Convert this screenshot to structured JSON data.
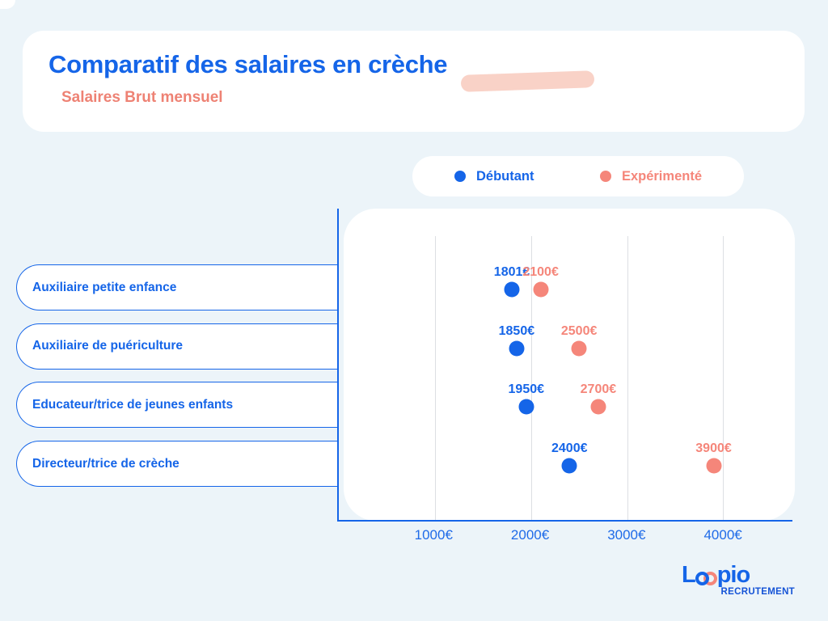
{
  "page": {
    "background": "#ecf4f9"
  },
  "header": {
    "title": "Comparatif des salaires en crèche",
    "subtitle": "Salaires Brut mensuel",
    "title_color": "#1565e8",
    "subtitle_color": "#ee8274",
    "highlight_color": "#f9d2c7"
  },
  "legend": {
    "items": [
      {
        "label": "Débutant",
        "color": "#1565e8"
      },
      {
        "label": "Expérimenté",
        "color": "#f5867a"
      }
    ]
  },
  "chart_data": {
    "type": "scatter",
    "title": "Comparatif des salaires en crèche",
    "subtitle": "Salaires Brut mensuel",
    "categories": [
      "Auxiliaire petite enfance",
      "Auxiliaire de puériculture",
      "Educateur/trice de jeunes enfants",
      "Directeur/trice de crèche"
    ],
    "series": [
      {
        "name": "Débutant",
        "color": "#1565e8",
        "values": [
          1801,
          1850,
          1950,
          2400
        ],
        "labels": [
          "1801€",
          "1850€",
          "1950€",
          "2400€"
        ]
      },
      {
        "name": "Expérimenté",
        "color": "#f5867a",
        "values": [
          2100,
          2500,
          2700,
          3900
        ],
        "labels": [
          "2100€",
          "2500€",
          "2700€",
          "3900€"
        ]
      }
    ],
    "x_ticks": [
      {
        "label": "1000€",
        "value": 1000
      },
      {
        "label": "2000€",
        "value": 2000
      },
      {
        "label": "3000€",
        "value": 3000
      },
      {
        "label": "4000€",
        "value": 4000
      }
    ],
    "x_min": 0,
    "x_max": 4720,
    "grid": true,
    "legend_position": "top",
    "unit": "€"
  },
  "footer": {
    "logo_l": "L",
    "logo_rest": "pio",
    "logo_sub": "RECRUTEMENT"
  }
}
